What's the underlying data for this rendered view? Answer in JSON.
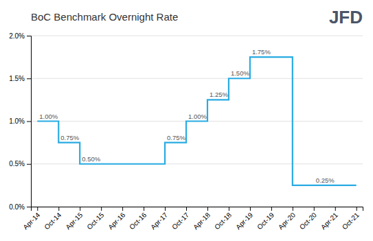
{
  "chart_data": {
    "type": "step",
    "title": "BoC Benchmark Overnight Rate",
    "logo": "JFD",
    "categories": [
      "Apr-14",
      "Oct-14",
      "Apr-15",
      "Oct-15",
      "Apr-16",
      "Oct-16",
      "Apr-17",
      "Oct-17",
      "Apr-18",
      "Oct-18",
      "Apr-19",
      "Oct-19",
      "Apr-20",
      "Oct-20",
      "Apr-21",
      "Oct-21"
    ],
    "values": [
      1.0,
      0.75,
      0.5,
      0.5,
      0.5,
      0.5,
      0.75,
      1.0,
      1.25,
      1.5,
      1.75,
      1.75,
      0.25,
      0.25,
      0.25,
      0.25
    ],
    "color": "#29ABE2",
    "ylim": [
      0.0,
      2.0
    ],
    "yticks": [
      {
        "value": 0.0,
        "label": "0.0%"
      },
      {
        "value": 0.5,
        "label": "0.5%"
      },
      {
        "value": 1.0,
        "label": "1.0%"
      },
      {
        "value": 1.5,
        "label": "1.5%"
      },
      {
        "value": 2.0,
        "label": "2.0%"
      }
    ],
    "grid": true,
    "annotations": [
      {
        "x": "Apr-14",
        "y": 1.0,
        "label": "1.00%"
      },
      {
        "x": "Oct-14",
        "y": 0.75,
        "label": "0.75%"
      },
      {
        "x": "Apr-15",
        "y": 0.5,
        "label": "0.50%"
      },
      {
        "x": "Apr-17",
        "y": 0.75,
        "label": "0.75%"
      },
      {
        "x": "Oct-17",
        "y": 1.0,
        "label": "1.00%"
      },
      {
        "x": "Apr-18",
        "y": 1.25,
        "label": "1.25%"
      },
      {
        "x": "Oct-18",
        "y": 1.5,
        "label": "1.50%"
      },
      {
        "x": "Apr-19",
        "y": 1.75,
        "label": "1.75%"
      },
      {
        "x": "Oct-20",
        "y": 0.25,
        "label": "0.25%"
      }
    ]
  }
}
